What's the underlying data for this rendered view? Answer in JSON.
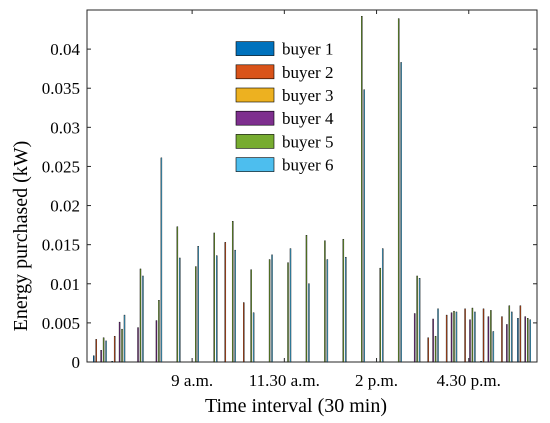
{
  "chart_data": {
    "type": "bar",
    "xlabel": "Time interval (30 min)",
    "ylabel": "Energy purchased (kW)",
    "ylim": [
      0,
      0.045
    ],
    "xlim": [
      0.3,
      24.7
    ],
    "yticks": [
      "0",
      "0.005",
      "0.01",
      "0.015",
      "0.02",
      "0.025",
      "0.03",
      "0.035",
      "0.04"
    ],
    "xticks": [
      {
        "x": 6,
        "label": "9 a.m."
      },
      {
        "x": 11,
        "label": "11.30 a.m."
      },
      {
        "x": 16,
        "label": "2 p.m."
      },
      {
        "x": 21,
        "label": "4.30 p.m."
      }
    ],
    "categories": [
      1,
      2,
      3,
      4,
      5,
      6,
      7,
      8,
      9,
      10,
      11,
      12,
      13,
      14,
      15,
      16,
      17,
      18,
      19,
      20,
      21,
      22,
      23,
      24
    ],
    "legend_position": "top-center",
    "grid": false,
    "series": [
      {
        "name": "buyer 1",
        "color": "#0072BD",
        "values": [
          0.0008,
          0.0001,
          0,
          0,
          0,
          0,
          0,
          0,
          0,
          0,
          0,
          0,
          0,
          0,
          0,
          0,
          0,
          0,
          0,
          0,
          0,
          0.0001,
          0,
          0.0056
        ]
      },
      {
        "name": "buyer 2",
        "color": "#D95319",
        "values": [
          0.0029,
          0.0033,
          0,
          0,
          0,
          0,
          0,
          0.0153,
          0.0076,
          0,
          0,
          0,
          0,
          0,
          0,
          0,
          0,
          0,
          0.0031,
          0.006,
          0.0068,
          0.0068,
          0.0058,
          0.0072
        ]
      },
      {
        "name": "buyer 3",
        "color": "#EDB120",
        "values": [
          0,
          0,
          0,
          0,
          0,
          0,
          0,
          0,
          0,
          0,
          0,
          0,
          0,
          0,
          0,
          0,
          0,
          0,
          0,
          0,
          0,
          0,
          0,
          0
        ]
      },
      {
        "name": "buyer 4",
        "color": "#7E2F8E",
        "values": [
          0.0015,
          0.0051,
          0.0044,
          0.0053,
          0,
          0,
          0,
          0,
          0,
          0,
          0,
          0,
          0,
          0,
          0,
          0,
          0,
          0.0062,
          0.0055,
          0.0063,
          0.0054,
          0.0058,
          0.0048,
          0.0058
        ]
      },
      {
        "name": "buyer 5",
        "color": "#77AC30",
        "values": [
          0.0031,
          0.0042,
          0.0119,
          0.0079,
          0.0173,
          0.0122,
          0.0165,
          0.018,
          0.0118,
          0.0131,
          0.0127,
          0.0162,
          0.0155,
          0.0157,
          0.0442,
          0.012,
          0.0439,
          0.011,
          0.0033,
          0.0065,
          0.0069,
          0.0066,
          0.0072,
          0.0056
        ]
      },
      {
        "name": "buyer 6",
        "color": "#4DBEEE",
        "values": [
          0.0027,
          0.006,
          0.011,
          0.0261,
          0.0133,
          0.0148,
          0.0136,
          0.0143,
          0.0063,
          0.0137,
          0.0145,
          0.01,
          0.0131,
          0.0134,
          0.0348,
          0.0145,
          0.0383,
          0.0107,
          0.0068,
          0.0064,
          0.0064,
          0.0039,
          0.0064,
          0.0054
        ]
      }
    ]
  }
}
